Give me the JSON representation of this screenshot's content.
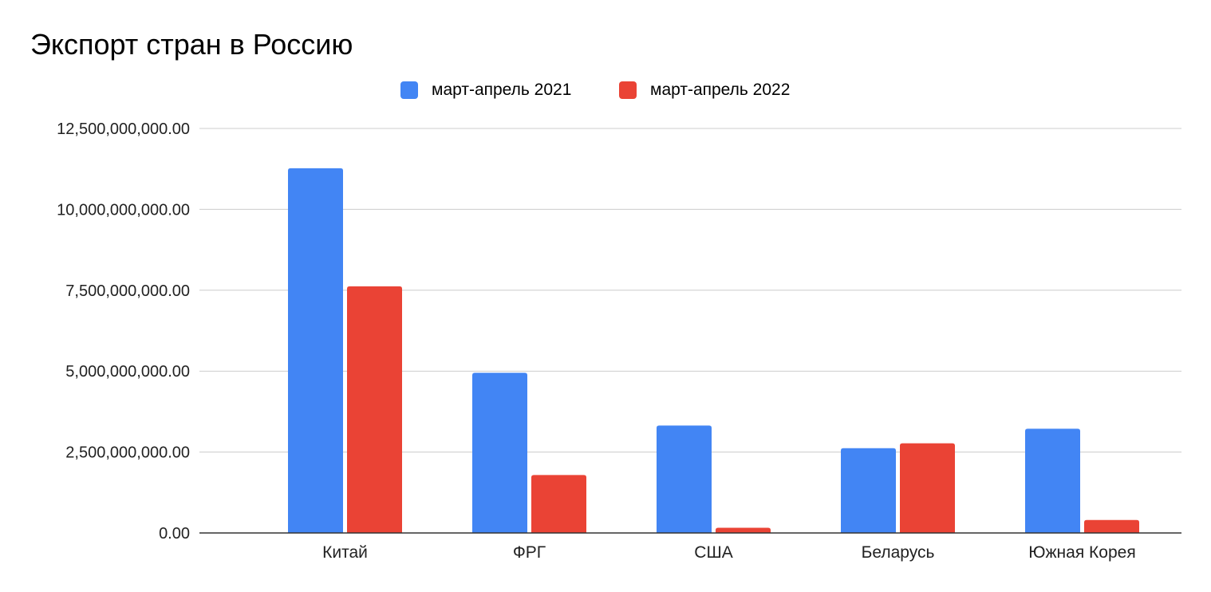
{
  "chart_data": {
    "type": "bar",
    "title": "Экспорт стран в Россию",
    "xlabel": "",
    "ylabel": "",
    "categories": [
      "Китай",
      "ФРГ",
      "США",
      "Беларусь",
      "Южная Корея"
    ],
    "series": [
      {
        "name": "март-апрель 2021",
        "color": "#4285f4",
        "values": [
          11270000000,
          4950000000,
          3320000000,
          2620000000,
          3220000000
        ]
      },
      {
        "name": "март-апрель 2022",
        "color": "#ea4335",
        "values": [
          7620000000,
          1790000000,
          160000000,
          2770000000,
          400000000
        ]
      }
    ],
    "ylim": [
      0,
      12500000000
    ],
    "yticks": [
      0,
      2500000000,
      5000000000,
      7500000000,
      10000000000,
      12500000000
    ],
    "ytick_labels": [
      "0.00",
      "2,500,000,000.00",
      "5,000,000,000.00",
      "7,500,000,000.00",
      "10,000,000,000.00",
      "12,500,000,000.00"
    ],
    "grid": true,
    "legend_position": "top"
  }
}
